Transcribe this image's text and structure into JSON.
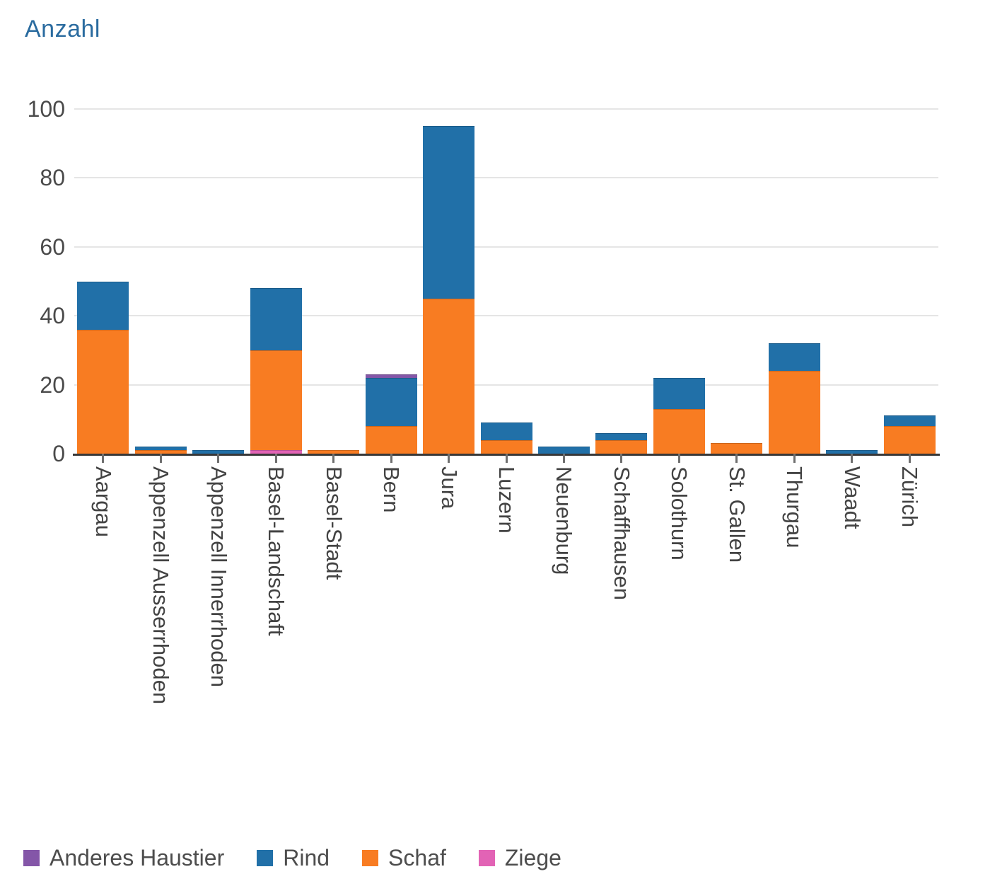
{
  "title": {
    "text": "Anzahl",
    "color": "#2a6b9f"
  },
  "chart_data": {
    "type": "bar",
    "stacked": true,
    "title": "Anzahl",
    "categories": [
      "Aargau",
      "Appenzell Ausserrhoden",
      "Appenzell Innerrhoden",
      "Basel-Landschaft",
      "Basel-Stadt",
      "Bern",
      "Jura",
      "Luzern",
      "Neuenburg",
      "Schaffhausen",
      "Solothurn",
      "St. Gallen",
      "Thurgau",
      "Waadt",
      "Zürich"
    ],
    "series": [
      {
        "name": "Anderes Haustier",
        "color": "#8456a8",
        "values": [
          0,
          0,
          0,
          0,
          0,
          1,
          0,
          0,
          0,
          0,
          0,
          0,
          0,
          0,
          0
        ]
      },
      {
        "name": "Rind",
        "color": "#2170a8",
        "values": [
          14,
          1,
          1,
          18,
          0,
          14,
          50,
          5,
          2,
          2,
          9,
          0,
          8,
          1,
          3
        ]
      },
      {
        "name": "Schaf",
        "color": "#f87c22",
        "values": [
          36,
          1,
          0,
          29,
          1,
          8,
          45,
          4,
          0,
          4,
          13,
          3,
          24,
          0,
          8
        ]
      },
      {
        "name": "Ziege",
        "color": "#e263b5",
        "values": [
          0,
          0,
          0,
          1,
          0,
          0,
          0,
          0,
          0,
          0,
          0,
          0,
          0,
          0,
          0
        ]
      }
    ],
    "stack_order_bottom_to_top": [
      "Ziege",
      "Schaf",
      "Rind",
      "Anderes Haustier"
    ],
    "xlabel": "",
    "ylabel": "Anzahl",
    "ylim": [
      0,
      100
    ],
    "yticks": [
      0,
      20,
      40,
      60,
      80,
      100
    ],
    "grid": true,
    "legend_position": "bottom"
  },
  "style": {
    "gridline_color": "#e5e5e5",
    "axis_color": "#383838",
    "tick_color": "#6f6f6f",
    "axis_label_color": "#4a4a4a",
    "category_label_color": "#434343",
    "legend_text_color": "#4d4d4d"
  }
}
